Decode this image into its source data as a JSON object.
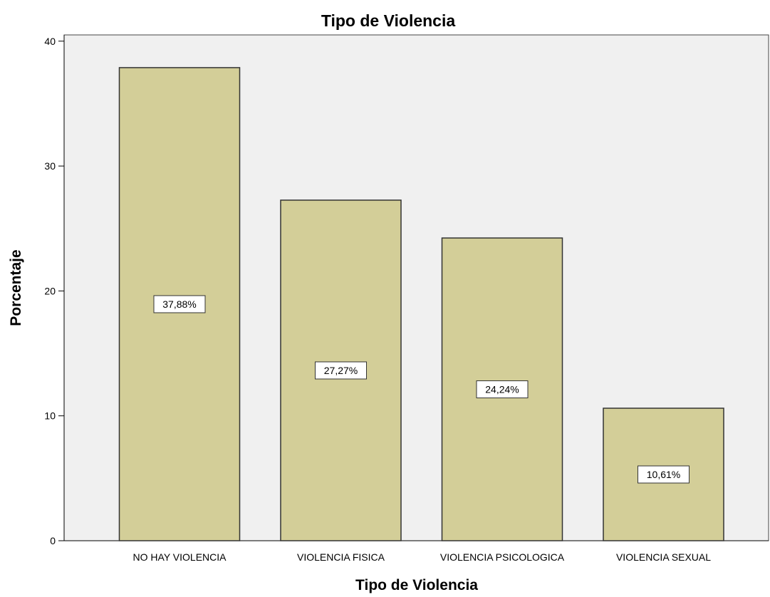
{
  "chart_data": {
    "type": "bar",
    "title": "Tipo de Violencia",
    "xlabel": "Tipo de Violencia",
    "ylabel": "Porcentaje",
    "categories": [
      "NO HAY VIOLENCIA",
      "VIOLENCIA FISICA",
      "VIOLENCIA PSICOLOGICA",
      "VIOLENCIA SEXUAL"
    ],
    "values": [
      37.88,
      27.27,
      24.24,
      10.61
    ],
    "data_labels": [
      "37,88%",
      "27,27%",
      "24,24%",
      "10,61%"
    ],
    "yticks": [
      0,
      10,
      20,
      30,
      40
    ],
    "ylim": [
      0,
      40.5
    ],
    "grid": false,
    "colors": {
      "plot_background": "#f0f0f0",
      "bar_fill": "#d3ce98",
      "bar_stroke": "#333333",
      "label_box": "#ffffff"
    }
  }
}
